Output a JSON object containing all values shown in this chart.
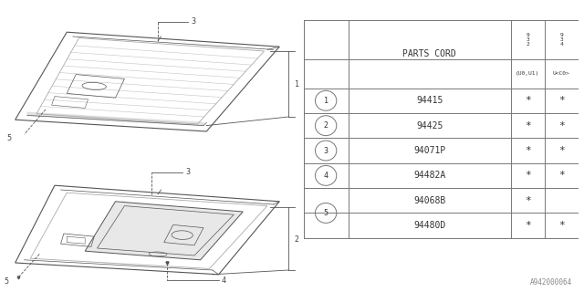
{
  "bg_color": "#ffffff",
  "line_color": "#aaaaaa",
  "dark_line": "#555555",
  "text_color": "#444444",
  "footer": "A942000064",
  "table": {
    "header": "PARTS CORD",
    "col2_top": "9\n3\n2",
    "col2_sub": "(U0,U1)",
    "col3_top": "9\n3\n4",
    "col3_sub": "U<C0>",
    "rows": [
      {
        "num": "1",
        "code": "94415",
        "c2": "*",
        "c3": "*",
        "merge5": false
      },
      {
        "num": "2",
        "code": "94425",
        "c2": "*",
        "c3": "*",
        "merge5": false
      },
      {
        "num": "3",
        "code": "94071P",
        "c2": "*",
        "c3": "*",
        "merge5": false
      },
      {
        "num": "4",
        "code": "94482A",
        "c2": "*",
        "c3": "*",
        "merge5": false
      },
      {
        "num": "5",
        "code": "94068B",
        "c2": "*",
        "c3": "",
        "merge5": true
      },
      {
        "num": "5",
        "code": "94480D",
        "c2": "*",
        "c3": "*",
        "merge5": true
      }
    ]
  }
}
